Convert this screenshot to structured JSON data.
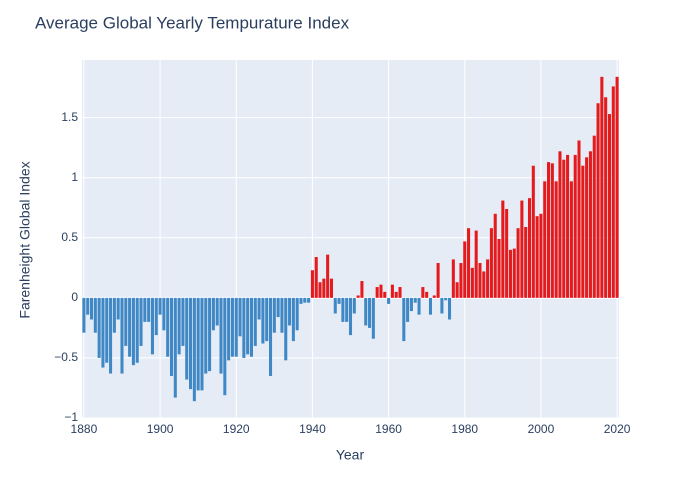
{
  "chart_data": {
    "type": "bar",
    "title": "Average Global Yearly Tempurature Index",
    "x_label": "Year",
    "y_label": "Farenheight Global Index",
    "x": [
      1880,
      1881,
      1882,
      1883,
      1884,
      1885,
      1886,
      1887,
      1888,
      1889,
      1890,
      1891,
      1892,
      1893,
      1894,
      1895,
      1896,
      1897,
      1898,
      1899,
      1900,
      1901,
      1902,
      1903,
      1904,
      1905,
      1906,
      1907,
      1908,
      1909,
      1910,
      1911,
      1912,
      1913,
      1914,
      1915,
      1916,
      1917,
      1918,
      1919,
      1920,
      1921,
      1922,
      1923,
      1924,
      1925,
      1926,
      1927,
      1928,
      1929,
      1930,
      1931,
      1932,
      1933,
      1934,
      1935,
      1936,
      1937,
      1938,
      1939,
      1940,
      1941,
      1942,
      1943,
      1944,
      1945,
      1946,
      1947,
      1948,
      1949,
      1950,
      1951,
      1952,
      1953,
      1954,
      1955,
      1956,
      1957,
      1958,
      1959,
      1960,
      1961,
      1962,
      1963,
      1964,
      1965,
      1966,
      1967,
      1968,
      1969,
      1970,
      1971,
      1972,
      1973,
      1974,
      1975,
      1976,
      1977,
      1978,
      1979,
      1980,
      1981,
      1982,
      1983,
      1984,
      1985,
      1986,
      1987,
      1988,
      1989,
      1990,
      1991,
      1992,
      1993,
      1994,
      1995,
      1996,
      1997,
      1998,
      1999,
      2000,
      2001,
      2002,
      2003,
      2004,
      2005,
      2006,
      2007,
      2008,
      2009,
      2010,
      2011,
      2012,
      2013,
      2014,
      2015,
      2016,
      2017,
      2018,
      2019,
      2020
    ],
    "values": [
      -0.29,
      -0.14,
      -0.18,
      -0.29,
      -0.5,
      -0.58,
      -0.54,
      -0.63,
      -0.29,
      -0.18,
      -0.63,
      -0.4,
      -0.49,
      -0.56,
      -0.54,
      -0.4,
      -0.2,
      -0.2,
      -0.47,
      -0.31,
      -0.14,
      -0.27,
      -0.49,
      -0.65,
      -0.83,
      -0.47,
      -0.4,
      -0.68,
      -0.76,
      -0.86,
      -0.77,
      -0.77,
      -0.63,
      -0.61,
      -0.27,
      -0.23,
      -0.63,
      -0.81,
      -0.52,
      -0.49,
      -0.49,
      -0.32,
      -0.5,
      -0.47,
      -0.49,
      -0.4,
      -0.18,
      -0.38,
      -0.36,
      -0.65,
      -0.29,
      -0.16,
      -0.29,
      -0.52,
      -0.23,
      -0.36,
      -0.27,
      -0.05,
      -0.04,
      -0.04,
      0.23,
      0.34,
      0.13,
      0.16,
      0.36,
      0.16,
      -0.13,
      -0.05,
      -0.2,
      -0.2,
      -0.31,
      -0.13,
      0.02,
      0.14,
      -0.23,
      -0.25,
      -0.34,
      0.09,
      0.11,
      0.05,
      -0.05,
      0.11,
      0.05,
      0.09,
      -0.36,
      -0.2,
      -0.11,
      -0.04,
      -0.14,
      0.09,
      0.05,
      -0.14,
      0.02,
      0.29,
      -0.13,
      -0.02,
      -0.18,
      0.32,
      0.13,
      0.29,
      0.47,
      0.58,
      0.25,
      0.56,
      0.29,
      0.22,
      0.32,
      0.58,
      0.7,
      0.49,
      0.81,
      0.74,
      0.4,
      0.41,
      0.58,
      0.81,
      0.59,
      0.83,
      1.1,
      0.68,
      0.7,
      0.97,
      1.13,
      1.12,
      0.97,
      1.22,
      1.15,
      1.19,
      0.97,
      1.19,
      1.31,
      1.1,
      1.17,
      1.22,
      1.35,
      1.62,
      1.84,
      1.67,
      1.53,
      1.76,
      1.84
    ],
    "color_positive": "#e41a1c",
    "color_negative": "#3f88c5",
    "xlim": [
      1879.5,
      2020.5
    ],
    "xticks": [
      1880,
      1900,
      1920,
      1940,
      1960,
      1980,
      2000,
      2020
    ],
    "ylim": [
      -1,
      1.98
    ],
    "yticks": [
      {
        "value": -1,
        "label": "−1"
      },
      {
        "value": -0.5,
        "label": "−0.5"
      },
      0,
      0.5,
      1,
      1.5
    ],
    "grid": true
  }
}
